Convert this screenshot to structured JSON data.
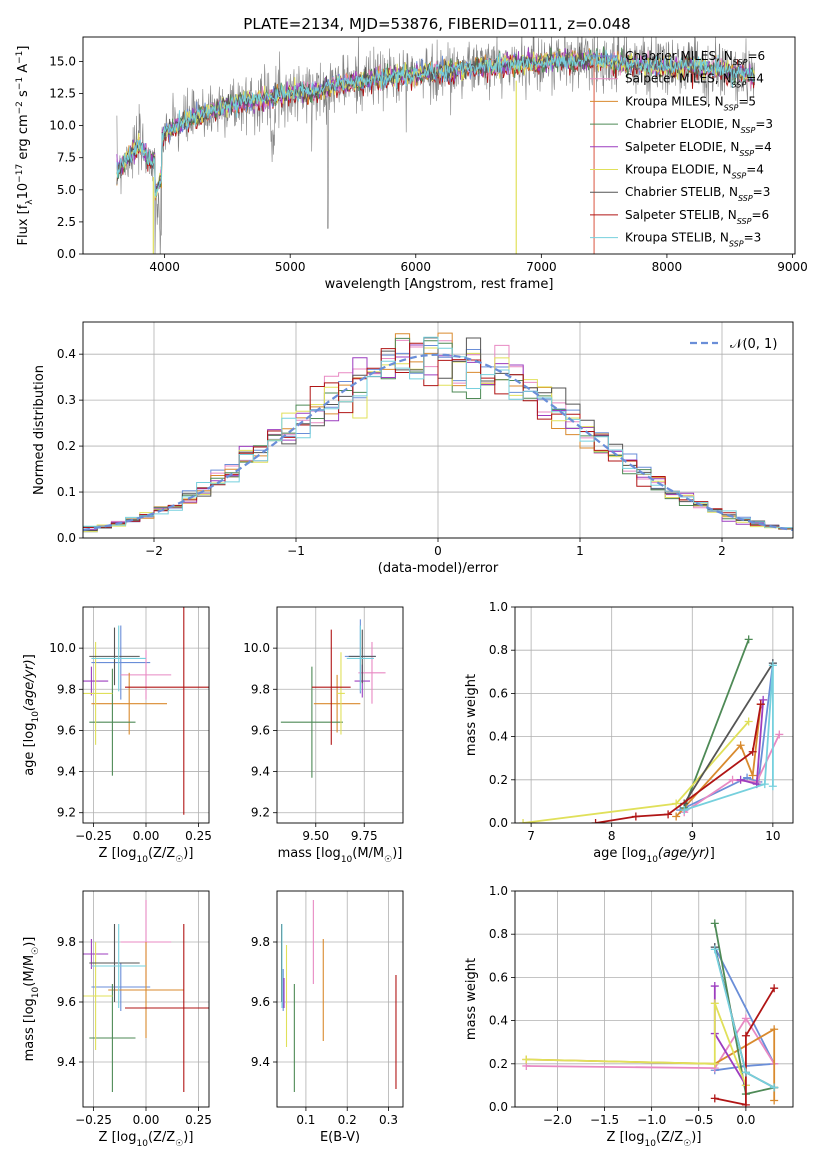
{
  "figure": {
    "title": "PLATE=2134, MJD=53876, FIBERID=0111, z=0.048"
  },
  "palette": [
    "#6a8ed8",
    "#e889c3",
    "#d98a2e",
    "#4e8a56",
    "#9c3dbf",
    "#e0e05a",
    "#555555",
    "#b01515",
    "#76d0dd"
  ],
  "chart_data": [
    {
      "id": "spectrum",
      "type": "line",
      "xlabel": "wavelength [Angstrom, rest frame]",
      "ylabel": "Flux [f_λ 10^-17 erg cm^-2 s^-1 A^-1]",
      "xlim": [
        3350,
        9020
      ],
      "ylim": [
        0,
        16.9
      ],
      "xticks": [
        4000,
        5000,
        6000,
        7000,
        8000,
        9000
      ],
      "yticks": [
        0.0,
        2.5,
        5.0,
        7.5,
        10.0,
        12.5,
        15.0
      ],
      "grid": false,
      "legend_position": "upper right",
      "series": [
        {
          "name": "Chabrier MILES, N_SSP=6"
        },
        {
          "name": "Salpeter MILES, N_SSP=4"
        },
        {
          "name": "Kroupa MILES, N_SSP=5"
        },
        {
          "name": "Chabrier ELODIE, N_SSP=3"
        },
        {
          "name": "Salpeter ELODIE, N_SSP=4"
        },
        {
          "name": "Kroupa ELODIE, N_SSP=4"
        },
        {
          "name": "Chabrier STELIB, N_SSP=3"
        },
        {
          "name": "Salpeter STELIB, N_SSP=6"
        },
        {
          "name": "Kroupa STELIB, N_SSP=3"
        }
      ],
      "continuum": [
        [
          3620,
          6.5
        ],
        [
          3700,
          7.5
        ],
        [
          3800,
          8.5
        ],
        [
          3900,
          7.2
        ],
        [
          4000,
          9.5
        ],
        [
          4200,
          10.5
        ],
        [
          4500,
          11.6
        ],
        [
          4800,
          12.1
        ],
        [
          5000,
          12.6
        ],
        [
          5200,
          12.7
        ],
        [
          5400,
          13.3
        ],
        [
          5700,
          13.7
        ],
        [
          6000,
          14.0
        ],
        [
          6200,
          14.2
        ],
        [
          6500,
          14.6
        ],
        [
          6800,
          14.8
        ],
        [
          7000,
          15.0
        ],
        [
          7200,
          15.1
        ],
        [
          7400,
          15.2
        ],
        [
          7600,
          14.9
        ],
        [
          7800,
          14.8
        ],
        [
          8000,
          14.6
        ],
        [
          8200,
          14.7
        ],
        [
          8400,
          14.4
        ],
        [
          8600,
          14.0
        ],
        [
          8700,
          13.8
        ]
      ]
    },
    {
      "id": "residuals",
      "type": "step",
      "xlabel": "(data-model)/error",
      "ylabel": "Normed distribution",
      "xlim": [
        -2.5,
        2.5
      ],
      "ylim": [
        0,
        0.47
      ],
      "xticks": [
        -2,
        -1,
        0,
        1,
        2
      ],
      "yticks": [
        0.0,
        0.1,
        0.2,
        0.3,
        0.4
      ],
      "grid": true,
      "legend": "N(0,1)",
      "legend_position": "upper right",
      "bin_width": 0.1
    },
    {
      "id": "age_vs_Z",
      "type": "errorbar",
      "xlabel": "Z [log10(Z/Z☉)]",
      "ylabel": "age  [log10(age/yr)]",
      "xlim": [
        -0.3,
        0.3
      ],
      "ylim": [
        9.15,
        10.2
      ],
      "xticks": [
        -0.25,
        0.0,
        0.25
      ],
      "yticks": [
        9.2,
        9.4,
        9.6,
        9.8,
        10.0
      ],
      "points": [
        {
          "x": -0.12,
          "xerr": 0.14,
          "y": 9.93,
          "yerr": 0.18
        },
        {
          "x": 0.0,
          "xerr": 0.12,
          "y": 9.87,
          "yerr": 0.12
        },
        {
          "x": -0.08,
          "xerr": 0.18,
          "y": 9.73,
          "yerr": 0.15
        },
        {
          "x": -0.16,
          "xerr": 0.11,
          "y": 9.64,
          "yerr": 0.26
        },
        {
          "x": -0.26,
          "xerr": 0.08,
          "y": 9.84,
          "yerr": 0.07
        },
        {
          "x": -0.24,
          "xerr": 0.08,
          "y": 9.78,
          "yerr": 0.25
        },
        {
          "x": -0.15,
          "xerr": 0.12,
          "y": 9.96,
          "yerr": 0.14
        },
        {
          "x": 0.18,
          "xerr": 0.28,
          "y": 9.81,
          "yerr": 0.62
        },
        {
          "x": -0.13,
          "xerr": 0.13,
          "y": 9.95,
          "yerr": 0.16
        }
      ]
    },
    {
      "id": "age_vs_mass",
      "type": "errorbar",
      "xlabel": "mass [log10(M/M☉)]",
      "ylabel": "",
      "xlim": [
        9.3,
        9.95
      ],
      "ylim": [
        9.15,
        10.2
      ],
      "xticks": [
        9.5,
        9.75
      ],
      "yticks": [
        9.2,
        9.4,
        9.6,
        9.8,
        10.0
      ],
      "points": [
        {
          "x": 9.73,
          "xerr": 0.08,
          "y": 9.96,
          "yerr": 0.18
        },
        {
          "x": 9.79,
          "xerr": 0.07,
          "y": 9.88,
          "yerr": 0.15
        },
        {
          "x": 9.61,
          "xerr": 0.12,
          "y": 9.73,
          "yerr": 0.14
        },
        {
          "x": 9.48,
          "xerr": 0.16,
          "y": 9.64,
          "yerr": 0.27
        },
        {
          "x": 9.74,
          "xerr": 0.04,
          "y": 9.84,
          "yerr": 0.08
        },
        {
          "x": 9.63,
          "xerr": 0.02,
          "y": 9.78,
          "yerr": 0.2
        },
        {
          "x": 9.74,
          "xerr": 0.07,
          "y": 9.96,
          "yerr": 0.13
        },
        {
          "x": 9.58,
          "xerr": 0.1,
          "y": 9.81,
          "yerr": 0.28
        },
        {
          "x": 9.73,
          "xerr": 0.07,
          "y": 9.95,
          "yerr": 0.16
        }
      ]
    },
    {
      "id": "weight_vs_age",
      "type": "line",
      "xlabel": "age  [log10(age/yr)]",
      "ylabel": "mass weight",
      "xlim": [
        6.8,
        10.25
      ],
      "ylim": [
        0,
        1.0
      ],
      "xticks": [
        7,
        8,
        9,
        10
      ],
      "yticks": [
        0.0,
        0.2,
        0.4,
        0.6,
        0.8,
        1.0
      ],
      "series": [
        [
          [
            8.85,
            0.06
          ],
          [
            9.68,
            0.21
          ],
          [
            9.82,
            0.19
          ],
          [
            10.0,
            0.74
          ]
        ],
        [
          [
            8.9,
            0.05
          ],
          [
            9.5,
            0.2
          ],
          [
            9.8,
            0.19
          ],
          [
            10.08,
            0.41
          ]
        ],
        [
          [
            8.8,
            0.03
          ],
          [
            9.6,
            0.36
          ],
          [
            9.75,
            0.22
          ],
          [
            9.85,
            0.55
          ]
        ],
        [
          [
            8.9,
            0.07
          ],
          [
            9.7,
            0.85
          ]
        ],
        [
          [
            9.6,
            0.2
          ],
          [
            9.8,
            0.18
          ],
          [
            9.88,
            0.57
          ]
        ],
        [
          [
            6.9,
            0.0
          ],
          [
            8.8,
            0.09
          ],
          [
            9.7,
            0.47
          ]
        ],
        [
          [
            8.9,
            0.09
          ],
          [
            10.0,
            0.74
          ]
        ],
        [
          [
            7.8,
            0.0
          ],
          [
            8.3,
            0.03
          ],
          [
            8.7,
            0.04
          ],
          [
            9.75,
            0.33
          ],
          [
            9.85,
            0.55
          ]
        ],
        [
          [
            8.9,
            0.06
          ],
          [
            9.9,
            0.18
          ],
          [
            10.0,
            0.73
          ],
          [
            10.0,
            0.17
          ]
        ]
      ]
    },
    {
      "id": "mass_vs_Z",
      "type": "errorbar",
      "xlabel": "Z [log10(Z/Z☉)]",
      "ylabel": "mass [log10(M/M☉)]",
      "xlim": [
        -0.3,
        0.3
      ],
      "ylim": [
        9.25,
        9.97
      ],
      "xticks": [
        -0.25,
        0.0,
        0.25
      ],
      "yticks": [
        9.4,
        9.6,
        9.8
      ],
      "points": [
        {
          "x": -0.12,
          "xerr": 0.14,
          "y": 9.65,
          "yerr": 0.08
        },
        {
          "x": 0.0,
          "xerr": 0.12,
          "y": 9.8,
          "yerr": 0.14
        },
        {
          "x": 0.0,
          "xerr": 0.18,
          "y": 9.64,
          "yerr": 0.16
        },
        {
          "x": -0.16,
          "xerr": 0.11,
          "y": 9.48,
          "yerr": 0.18
        },
        {
          "x": -0.26,
          "xerr": 0.08,
          "y": 9.76,
          "yerr": 0.05
        },
        {
          "x": -0.24,
          "xerr": 0.08,
          "y": 9.62,
          "yerr": 0.18
        },
        {
          "x": -0.15,
          "xerr": 0.12,
          "y": 9.73,
          "yerr": 0.13
        },
        {
          "x": 0.18,
          "xerr": 0.28,
          "y": 9.58,
          "yerr": 0.28
        },
        {
          "x": -0.13,
          "xerr": 0.13,
          "y": 9.72,
          "yerr": 0.14
        }
      ]
    },
    {
      "id": "mass_vs_ebv",
      "type": "errorbar",
      "xlabel": "E(B-V)",
      "ylabel": "",
      "xlim": [
        0.03,
        0.335
      ],
      "ylim": [
        9.25,
        9.97
      ],
      "xticks": [
        0.1,
        0.2,
        0.3
      ],
      "yticks": [
        9.4,
        9.6,
        9.8
      ],
      "points": [
        {
          "x": 0.045,
          "y": 9.64,
          "yerr": 0.07
        },
        {
          "x": 0.118,
          "y": 9.8,
          "yerr": 0.14
        },
        {
          "x": 0.142,
          "y": 9.64,
          "yerr": 0.17
        },
        {
          "x": 0.072,
          "y": 9.48,
          "yerr": 0.18
        },
        {
          "x": 0.047,
          "y": 9.63,
          "yerr": 0.05
        },
        {
          "x": 0.053,
          "y": 9.62,
          "yerr": 0.17
        },
        {
          "x": 0.041,
          "y": 9.73,
          "yerr": 0.13
        },
        {
          "x": 0.318,
          "y": 9.5,
          "yerr": 0.19
        },
        {
          "x": 0.042,
          "y": 9.72,
          "yerr": 0.14
        }
      ]
    },
    {
      "id": "weight_vs_Z",
      "type": "line",
      "xlabel": "Z [log10(Z/Z☉)]",
      "ylabel": "mass weight",
      "xlim": [
        -2.45,
        0.5
      ],
      "ylim": [
        0,
        1.0
      ],
      "xticks": [
        -2.0,
        -1.5,
        -1.0,
        -0.5,
        0.0
      ],
      "yticks": [
        0.0,
        0.2,
        0.4,
        0.6,
        0.8,
        1.0
      ],
      "series": [
        [
          [
            -0.33,
            0.17
          ],
          [
            0.0,
            0.19
          ],
          [
            0.3,
            0.2
          ],
          [
            -0.33,
            0.74
          ]
        ],
        [
          [
            -2.33,
            0.19
          ],
          [
            -0.33,
            0.18
          ],
          [
            0.0,
            0.41
          ],
          [
            0.3,
            0.2
          ]
        ],
        [
          [
            -2.33,
            0.22
          ],
          [
            -0.33,
            0.2
          ],
          [
            0.3,
            0.36
          ],
          [
            0.3,
            0.03
          ]
        ],
        [
          [
            -0.33,
            0.85
          ],
          [
            0.0,
            0.06
          ],
          [
            0.3,
            0.09
          ]
        ],
        [
          [
            -0.33,
            0.56
          ],
          [
            -0.33,
            0.34
          ],
          [
            0.0,
            0.1
          ]
        ],
        [
          [
            -2.33,
            0.22
          ],
          [
            -0.33,
            0.2
          ],
          [
            -0.33,
            0.48
          ],
          [
            0.0,
            0.1
          ]
        ],
        [
          [
            -0.33,
            0.74
          ],
          [
            0.0,
            0.16
          ],
          [
            0.3,
            0.09
          ]
        ],
        [
          [
            -0.33,
            0.04
          ],
          [
            0.0,
            0.01
          ],
          [
            0.0,
            0.33
          ],
          [
            0.3,
            0.55
          ]
        ],
        [
          [
            -0.33,
            0.73
          ],
          [
            0.0,
            0.16
          ],
          [
            0.3,
            0.09
          ]
        ]
      ]
    }
  ]
}
